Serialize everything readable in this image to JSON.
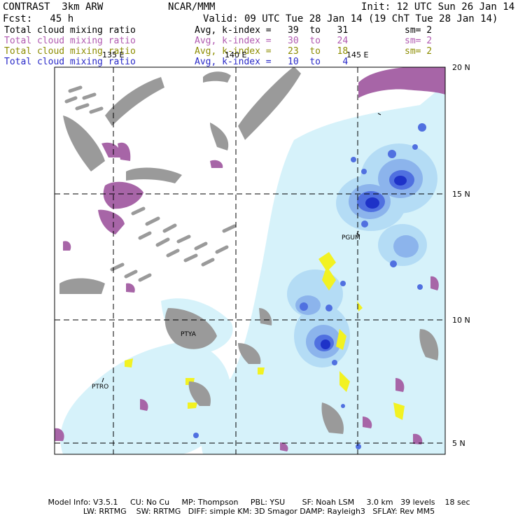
{
  "header": {
    "model": "CONTRAST  3km ARW",
    "org": "NCAR/MMM",
    "init": "Init: 12 UTC Sun 26 Jan 14",
    "fcst": "Fcst:   45 h",
    "valid": "Valid: 09 UTC Tue 28 Jan 14 (19 ChT Tue 28 Jan 14)"
  },
  "fields": [
    {
      "name": "Total cloud mixing ratio",
      "range": "Avg, k-index =   39  to   31",
      "sm": "sm= 2",
      "color": "#000000"
    },
    {
      "name": "Total cloud mixing ratio",
      "range": "Avg, k-index =   30  to   24",
      "sm": "sm= 2",
      "color": "#b05ab0"
    },
    {
      "name": "Total cloud mixing ratio",
      "range": "Avg, k-index =   23  to   18",
      "sm": "sm= 2",
      "color": "#8c8c00"
    },
    {
      "name": "Total cloud mixing ratio",
      "range": "Avg, k-index =   10  to    4",
      "sm": "",
      "color": "#2828c8"
    }
  ],
  "map": {
    "lon_labels": [
      "135 E",
      "140 E",
      "145 E"
    ],
    "lat_labels": [
      "20 N",
      "15 N",
      "10 N",
      "5 N"
    ],
    "stations": [
      "PGUM",
      "PTYA",
      "PTRO"
    ]
  },
  "colors": {
    "gray": "#9a9a9a",
    "purple": "#a765a7",
    "yellow": "#f2f222",
    "blue_light": "#d6f2fa",
    "blue_1": "#b4dcf5",
    "blue_2": "#8cb4ec",
    "blue_3": "#5070e0",
    "blue_4": "#1e32c8"
  },
  "footer": {
    "line1": "Model Info: V3.5.1     CU: No Cu     MP: Thompson     PBL: YSU       SF: Noah LSM     3.0 km   39 levels    18 sec",
    "line2": "LW: RRTMG    SW: RRTMG   DIFF: simple KM: 3D Smagor DAMP: Rayleigh3   SFLAY: Rev MM5"
  }
}
